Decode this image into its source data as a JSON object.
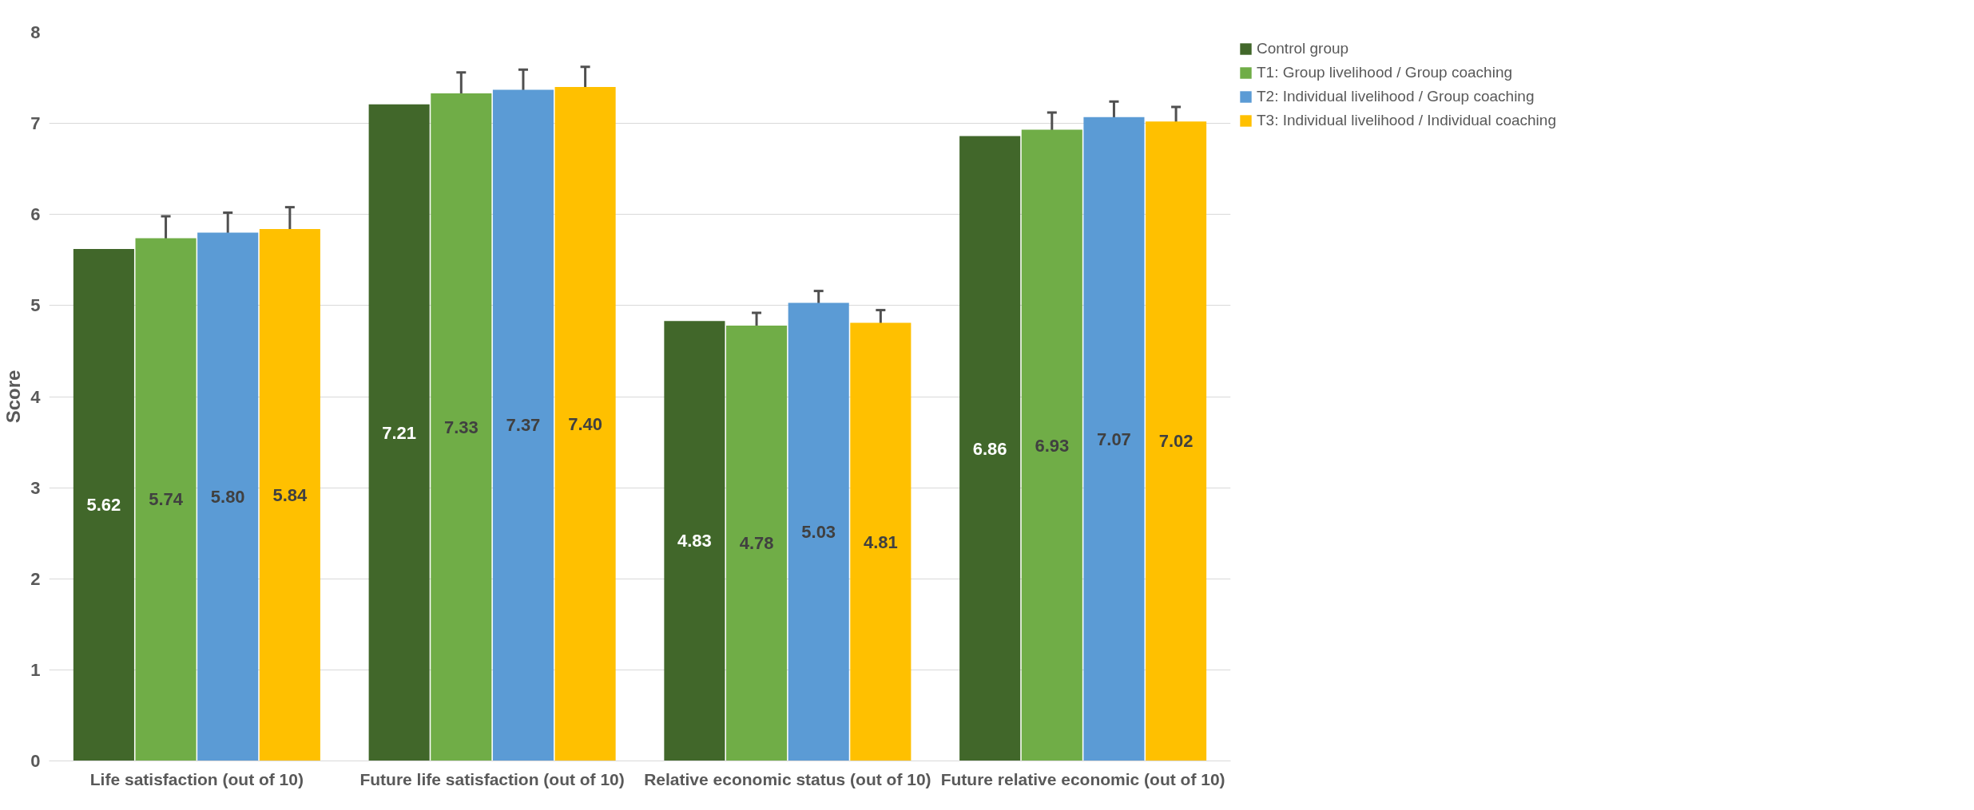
{
  "chart_data": {
    "type": "bar",
    "ylabel": "Score",
    "categories": [
      "Life satisfaction (out of 10)",
      "Future life satisfaction (out of 10)",
      "Relative economic status (out of 10)",
      "Future relative economic (out of 10)"
    ],
    "series": [
      {
        "name": "Control group",
        "color": "#41672a",
        "values": [
          5.62,
          7.21,
          4.83,
          6.86
        ],
        "value_labels": [
          "5.62",
          "7.21",
          "4.83",
          "6.86"
        ]
      },
      {
        "name": "T1: Group livelihood / Group coaching",
        "color": "#70ad47",
        "values": [
          5.74,
          7.33,
          4.78,
          6.93
        ],
        "value_labels": [
          "5.74",
          "7.33",
          "4.78",
          "6.93"
        ],
        "errors": [
          0.24,
          0.23,
          0.14,
          0.19
        ]
      },
      {
        "name": "T2: Individual livelihood / Group coaching",
        "color": "#5b9bd5",
        "values": [
          5.8,
          7.37,
          5.03,
          7.07
        ],
        "value_labels": [
          "5.80",
          "7.37",
          "5.03",
          "7.07"
        ],
        "errors": [
          0.22,
          0.22,
          0.13,
          0.17
        ]
      },
      {
        "name": "T3: Individual livelihood / Individual coaching",
        "color": "#ffc000",
        "values": [
          5.84,
          7.4,
          4.81,
          7.02
        ],
        "value_labels": [
          "5.84",
          "7.40",
          "4.81",
          "7.02"
        ],
        "errors": [
          0.24,
          0.22,
          0.14,
          0.16
        ]
      }
    ],
    "ylim": [
      0,
      8
    ],
    "yticks": [
      0,
      1,
      2,
      3,
      4,
      5,
      6,
      7,
      8
    ],
    "grid": "y",
    "legend": "top right"
  }
}
